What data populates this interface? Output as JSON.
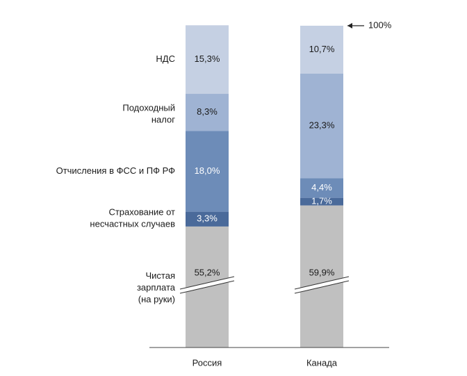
{
  "chart_data": {
    "type": "stacked_bar",
    "categories": [
      "Россия",
      "Канада"
    ],
    "series": [
      {
        "name": "Чистая\nзарплата\n(на руки)",
        "color": "#c0c0c0",
        "values": [
          55.2,
          59.9
        ],
        "value_labels": [
          "55,2%",
          "59,9%"
        ]
      },
      {
        "name": "Страхование от\nнесчастных случаев",
        "color": "#4a6a9a",
        "values": [
          3.3,
          1.7
        ],
        "value_labels": [
          "3,3%",
          "1,7%"
        ]
      },
      {
        "name": "Отчисления в ФСС и ПФ РФ",
        "color": "#6d8cb8",
        "values": [
          18.0,
          4.4
        ],
        "value_labels": [
          "18,0%",
          "4,4%"
        ]
      },
      {
        "name": "Подоходный\nналог",
        "color": "#9fb3d3",
        "values": [
          8.3,
          23.3
        ],
        "value_labels": [
          "8,3%",
          "23,3%"
        ]
      },
      {
        "name": "НДС",
        "color": "#c5d0e3",
        "values": [
          15.3,
          10.7
        ],
        "value_labels": [
          "15,3%",
          "10,7%"
        ]
      }
    ],
    "ylim": [
      28.2,
      100
    ],
    "axis_break": true,
    "annotation": "100%"
  }
}
